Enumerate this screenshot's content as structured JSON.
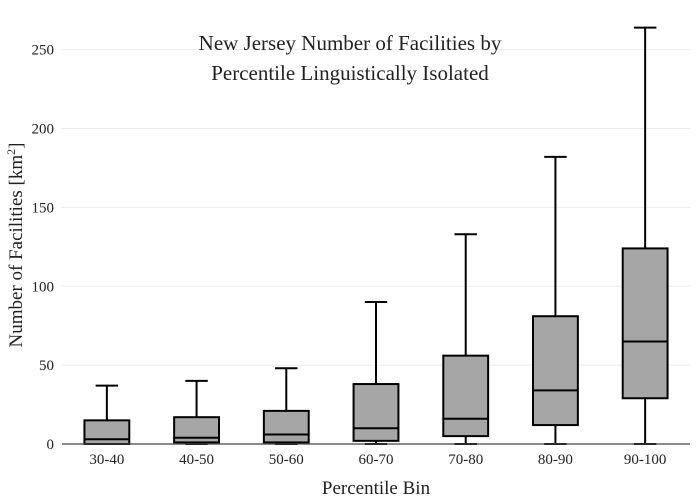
{
  "chart_data": {
    "type": "box",
    "title_lines": [
      "New Jersey Number of Facilities by",
      "Percentile Linguistically Isolated"
    ],
    "xlabel": "Percentile Bin",
    "ylabel_main": "Number of Facilities  [km",
    "ylabel_sup": "2",
    "ylabel_end": "]",
    "ylim": [
      0,
      265
    ],
    "yticks": [
      0,
      50,
      100,
      150,
      200,
      250
    ],
    "grid": true,
    "legend": "none",
    "colors": {
      "box_fill": "#a6a6a6",
      "stroke": "#000000",
      "grid": "#ececec"
    },
    "categories": [
      "30-40",
      "40-50",
      "50-60",
      "60-70",
      "70-80",
      "80-90",
      "90-100"
    ],
    "boxes": [
      {
        "min": 0,
        "q1": 0,
        "median": 3,
        "q3": 15,
        "max": 37
      },
      {
        "min": 0,
        "q1": 1,
        "median": 4,
        "q3": 17,
        "max": 40
      },
      {
        "min": 0,
        "q1": 1,
        "median": 6,
        "q3": 21,
        "max": 48
      },
      {
        "min": 0,
        "q1": 2,
        "median": 10,
        "q3": 38,
        "max": 90
      },
      {
        "min": 0,
        "q1": 5,
        "median": 16,
        "q3": 56,
        "max": 133
      },
      {
        "min": 0,
        "q1": 12,
        "median": 34,
        "q3": 81,
        "max": 182
      },
      {
        "min": 0,
        "q1": 29,
        "median": 65,
        "q3": 124,
        "max": 264
      }
    ]
  }
}
